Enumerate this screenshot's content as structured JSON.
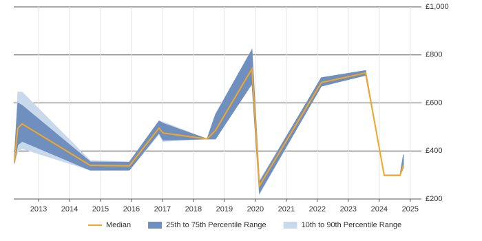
{
  "chart_data": {
    "type": "line",
    "x": [
      2012.22,
      2012.33,
      2012.47,
      2014.67,
      2015.93,
      2016.89,
      2017.02,
      2018.44,
      2018.71,
      2019.89,
      2020.13,
      2022.13,
      2023.56,
      2024.16,
      2024.67,
      2024.78
    ],
    "series": [
      {
        "name": "Median",
        "color": "#f5a623",
        "values": [
          355,
          495,
          513,
          340,
          338,
          495,
          475,
          450,
          485,
          742,
          255,
          685,
          725,
          298,
          298,
          340
        ]
      }
    ],
    "bands": [
      {
        "name": "10th to 90th Percentile Range",
        "color": "#c9d9ec",
        "upper": [
          355,
          645,
          645,
          360,
          355,
          525,
          520,
          450,
          555,
          822,
          275,
          705,
          735,
          300,
          300,
          385
        ],
        "lower": [
          345,
          400,
          410,
          320,
          320,
          470,
          440,
          450,
          450,
          680,
          220,
          670,
          715,
          298,
          298,
          330
        ]
      },
      {
        "name": "25th to 75th Percentile Range",
        "color": "#6f8fbf",
        "upper": [
          380,
          600,
          590,
          355,
          353,
          525,
          515,
          450,
          550,
          822,
          270,
          705,
          735,
          300,
          300,
          385
        ],
        "lower": [
          350,
          425,
          440,
          320,
          320,
          475,
          445,
          450,
          450,
          680,
          225,
          670,
          715,
          298,
          298,
          330
        ]
      }
    ],
    "xlim": [
      2012.2,
      2025.36
    ],
    "xticks": [
      2013,
      2014,
      2015,
      2016,
      2017,
      2018,
      2019,
      2020,
      2021,
      2022,
      2023,
      2024,
      2025
    ],
    "ylim": [
      200,
      1000
    ],
    "yticks": [
      {
        "value": 200,
        "label": "£200"
      },
      {
        "value": 400,
        "label": "£400"
      },
      {
        "value": 600,
        "label": "£600"
      },
      {
        "value": 800,
        "label": "£800"
      },
      {
        "value": 1000,
        "label": "£1,000"
      }
    ],
    "grid": true,
    "legend": "bottom"
  }
}
